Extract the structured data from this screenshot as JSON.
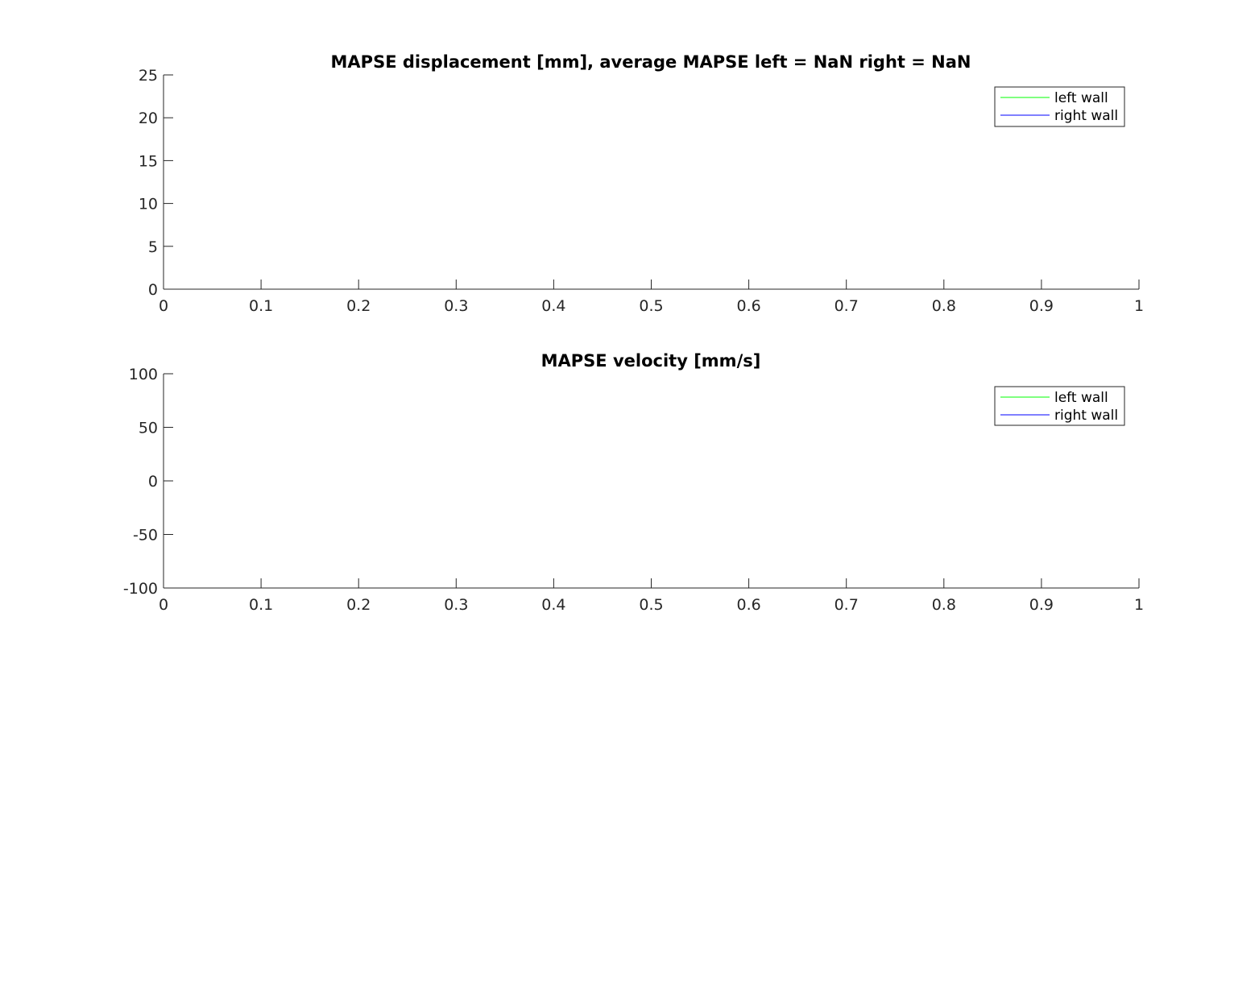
{
  "chart_data": [
    {
      "type": "line",
      "title": "MAPSE displacement [mm], average MAPSE left = NaN right = NaN",
      "xlabel": "",
      "ylabel": "",
      "xlim": [
        0,
        1
      ],
      "ylim": [
        0,
        25
      ],
      "x_ticks": [
        0,
        0.1,
        0.2,
        0.3,
        0.4,
        0.5,
        0.6,
        0.7,
        0.8,
        0.9,
        1
      ],
      "x_tick_labels": [
        "0",
        "0.1",
        "0.2",
        "0.3",
        "0.4",
        "0.5",
        "0.6",
        "0.7",
        "0.8",
        "0.9",
        "1"
      ],
      "y_ticks": [
        0,
        5,
        10,
        15,
        20,
        25
      ],
      "y_tick_labels": [
        "0",
        "5",
        "10",
        "15",
        "20",
        "25"
      ],
      "grid": false,
      "legend_position": "top-right",
      "series": [
        {
          "name": "left wall",
          "color": "#00ff00",
          "x": [],
          "y": []
        },
        {
          "name": "right wall",
          "color": "#0000ff",
          "x": [],
          "y": []
        }
      ]
    },
    {
      "type": "line",
      "title": "MAPSE velocity [mm/s]",
      "xlabel": "",
      "ylabel": "",
      "xlim": [
        0,
        1
      ],
      "ylim": [
        -100,
        100
      ],
      "x_ticks": [
        0,
        0.1,
        0.2,
        0.3,
        0.4,
        0.5,
        0.6,
        0.7,
        0.8,
        0.9,
        1
      ],
      "x_tick_labels": [
        "0",
        "0.1",
        "0.2",
        "0.3",
        "0.4",
        "0.5",
        "0.6",
        "0.7",
        "0.8",
        "0.9",
        "1"
      ],
      "y_ticks": [
        -100,
        -50,
        0,
        50,
        100
      ],
      "y_tick_labels": [
        "-100",
        "-50",
        "0",
        "50",
        "100"
      ],
      "grid": false,
      "legend_position": "top-right",
      "series": [
        {
          "name": "left wall",
          "color": "#00ff00",
          "x": [],
          "y": []
        },
        {
          "name": "right wall",
          "color": "#0000ff",
          "x": [],
          "y": []
        }
      ]
    }
  ]
}
